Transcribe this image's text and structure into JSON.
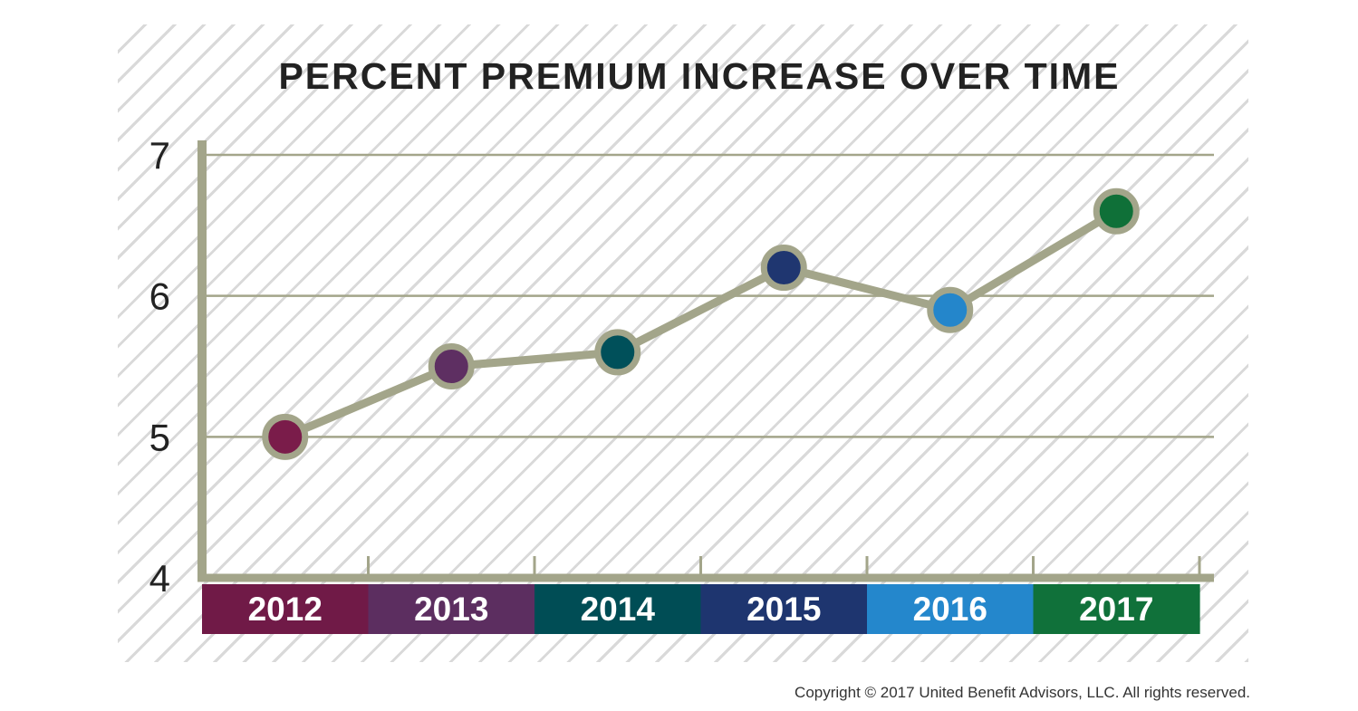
{
  "chart_data": {
    "type": "line",
    "title": "PERCENT PREMIUM INCREASE OVER TIME",
    "categories": [
      "2012",
      "2013",
      "2014",
      "2015",
      "2016",
      "2017"
    ],
    "series": [
      {
        "values": [
          5.0,
          5.5,
          5.6,
          6.2,
          5.9,
          6.6
        ]
      }
    ],
    "point_colors": [
      "#7a1c4a",
      "#5e2f62",
      "#00505a",
      "#1f3670",
      "#2486cb",
      "#0f7038"
    ],
    "category_colors": [
      "#701a47",
      "#5c2e60",
      "#004d55",
      "#1e356f",
      "#2487cc",
      "#10713a"
    ],
    "line_color": "#a3a58a",
    "y_ticks": [
      "7",
      "6",
      "5",
      "4"
    ],
    "ylim": [
      4,
      7
    ],
    "grid": true,
    "xlabel": "",
    "ylabel": ""
  },
  "footer": {
    "copyright": "Copyright © 2017 United Benefit Advisors, LLC. All rights reserved."
  }
}
